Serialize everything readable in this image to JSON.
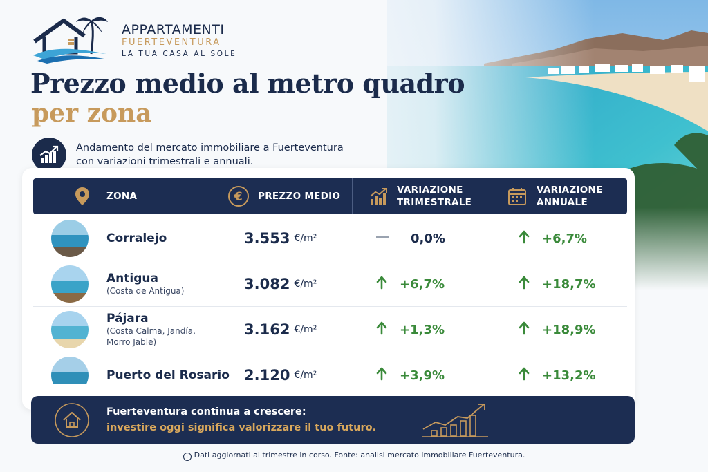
{
  "brand": {
    "line1": "APPARTAMENTI",
    "line2": "FUERTEVENTURA",
    "tagline": "LA TUA CASA AL SOLE"
  },
  "title": {
    "line1": "Prezzo medio al metro quadro",
    "line2": "per zona"
  },
  "subtitle": {
    "line1": "Andamento del mercato immobiliare a Fuerteventura",
    "line2": "con variazioni trimestrali e annuali."
  },
  "table": {
    "headers": {
      "zona": "ZONA",
      "prezzo": "PREZZO MEDIO",
      "trim_line1": "VARIAZIONE",
      "trim_line2": "TRIMESTRALE",
      "ann_line1": "VARIAZIONE",
      "ann_line2": "ANNUALE"
    },
    "rows": [
      {
        "zone": "Corralejo",
        "sub1": "",
        "sub2": "",
        "price": "3.553",
        "unit": "€/m²",
        "quarterly": "0,0%",
        "quarterly_trend": "flat",
        "annual": "+6,7%",
        "annual_trend": "up"
      },
      {
        "zone": "Antigua",
        "sub1": "(Costa de Antigua)",
        "sub2": "",
        "price": "3.082",
        "unit": "€/m²",
        "quarterly": "+6,7%",
        "quarterly_trend": "up",
        "annual": "+18,7%",
        "annual_trend": "up"
      },
      {
        "zone": "Pájara",
        "sub1": "(Costa Calma, Jandía,",
        "sub2": "Morro Jable)",
        "price": "3.162",
        "unit": "€/m²",
        "quarterly": "+1,3%",
        "quarterly_trend": "up",
        "annual": "+18,9%",
        "annual_trend": "up"
      },
      {
        "zone": "Puerto del Rosario",
        "sub1": "",
        "sub2": "",
        "price": "2.120",
        "unit": "€/m²",
        "quarterly": "+3,9%",
        "quarterly_trend": "up",
        "annual": "+13,2%",
        "annual_trend": "up"
      }
    ]
  },
  "banner": {
    "line1": "Fuerteventura continua a crescere:",
    "line2": "investire oggi significa valorizzare il tuo futuro."
  },
  "footnote": "Dati aggiornati al trimestre in corso. Fonte: analisi mercato immobiliare Fuerteventura.",
  "icons": {
    "zone": "map-pin-icon",
    "price": "euro-icon",
    "quarterly": "bar-chart-up-icon",
    "annual": "calendar-icon",
    "up": "arrow-up-icon",
    "flat": "dash-icon",
    "banner": "house-icon",
    "banner_chart": "growth-chart-icon",
    "info": "info-icon"
  },
  "colors": {
    "navy": "#1c2d52",
    "gold": "#c79a5c",
    "green": "#3a8a3a",
    "background": "#f7f9fb"
  }
}
